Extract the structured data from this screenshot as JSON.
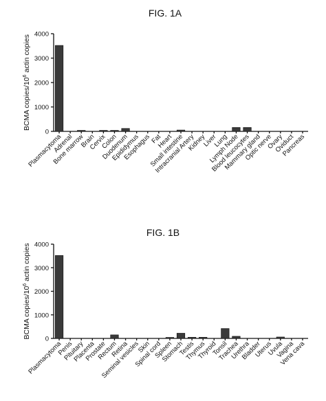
{
  "chart_data": [
    {
      "type": "bar",
      "title": "FIG. 1A",
      "ylabel": "BCMA copies/10^6 actin copies",
      "ylabel_main": "BCMA copies/10",
      "ylabel_sup": "6",
      "ylabel_tail": " actin copies",
      "ylim": [
        0,
        4000
      ],
      "yticks": [
        0,
        1000,
        2000,
        3000,
        4000
      ],
      "categories": [
        "Plasmacytoma",
        "Adrenal",
        "Bone marrow",
        "Brain",
        "Cervix",
        "Colon",
        "Duodenum",
        "Epididymus",
        "Esophagus",
        "Fat",
        "Heart",
        "Small intestine",
        "Intracranial Artery",
        "Kidney",
        "Liver",
        "Lung",
        "Lymph Node",
        "Blood leucocytes",
        "Mammary gland",
        "Optic nerve",
        "Ovary",
        "Oviduct",
        "Pancreas"
      ],
      "values": [
        3520,
        0,
        30,
        0,
        15,
        10,
        120,
        0,
        0,
        0,
        0,
        55,
        0,
        0,
        0,
        0,
        160,
        160,
        0,
        0,
        0,
        0,
        0
      ],
      "grid": false
    },
    {
      "type": "bar",
      "title": "FIG. 1B",
      "ylabel": "BCMA copies/10^6 actin copies",
      "ylabel_main": "BCMA copies/10",
      "ylabel_sup": "6",
      "ylabel_tail": " actin copies",
      "ylim": [
        0,
        4000
      ],
      "yticks": [
        0,
        1000,
        2000,
        3000,
        4000
      ],
      "categories": [
        "Plasmacytoma",
        "Penis",
        "Pituitary",
        "Placenta",
        "Prostate",
        "Rectum",
        "Retina",
        "Seminal vesicles",
        "Skin",
        "Spinal cord",
        "Spleen",
        "Stomach",
        "Testis",
        "Thymus",
        "Thyroid",
        "Tonsil",
        "Trachea",
        "Urethra",
        "Bladder",
        "Uterus",
        "Uvula",
        "Vagina",
        "Vena cava"
      ],
      "values": [
        3520,
        0,
        0,
        0,
        0,
        150,
        0,
        0,
        0,
        0,
        30,
        220,
        50,
        50,
        0,
        420,
        90,
        0,
        0,
        0,
        60,
        0,
        0
      ],
      "grid": false
    }
  ]
}
